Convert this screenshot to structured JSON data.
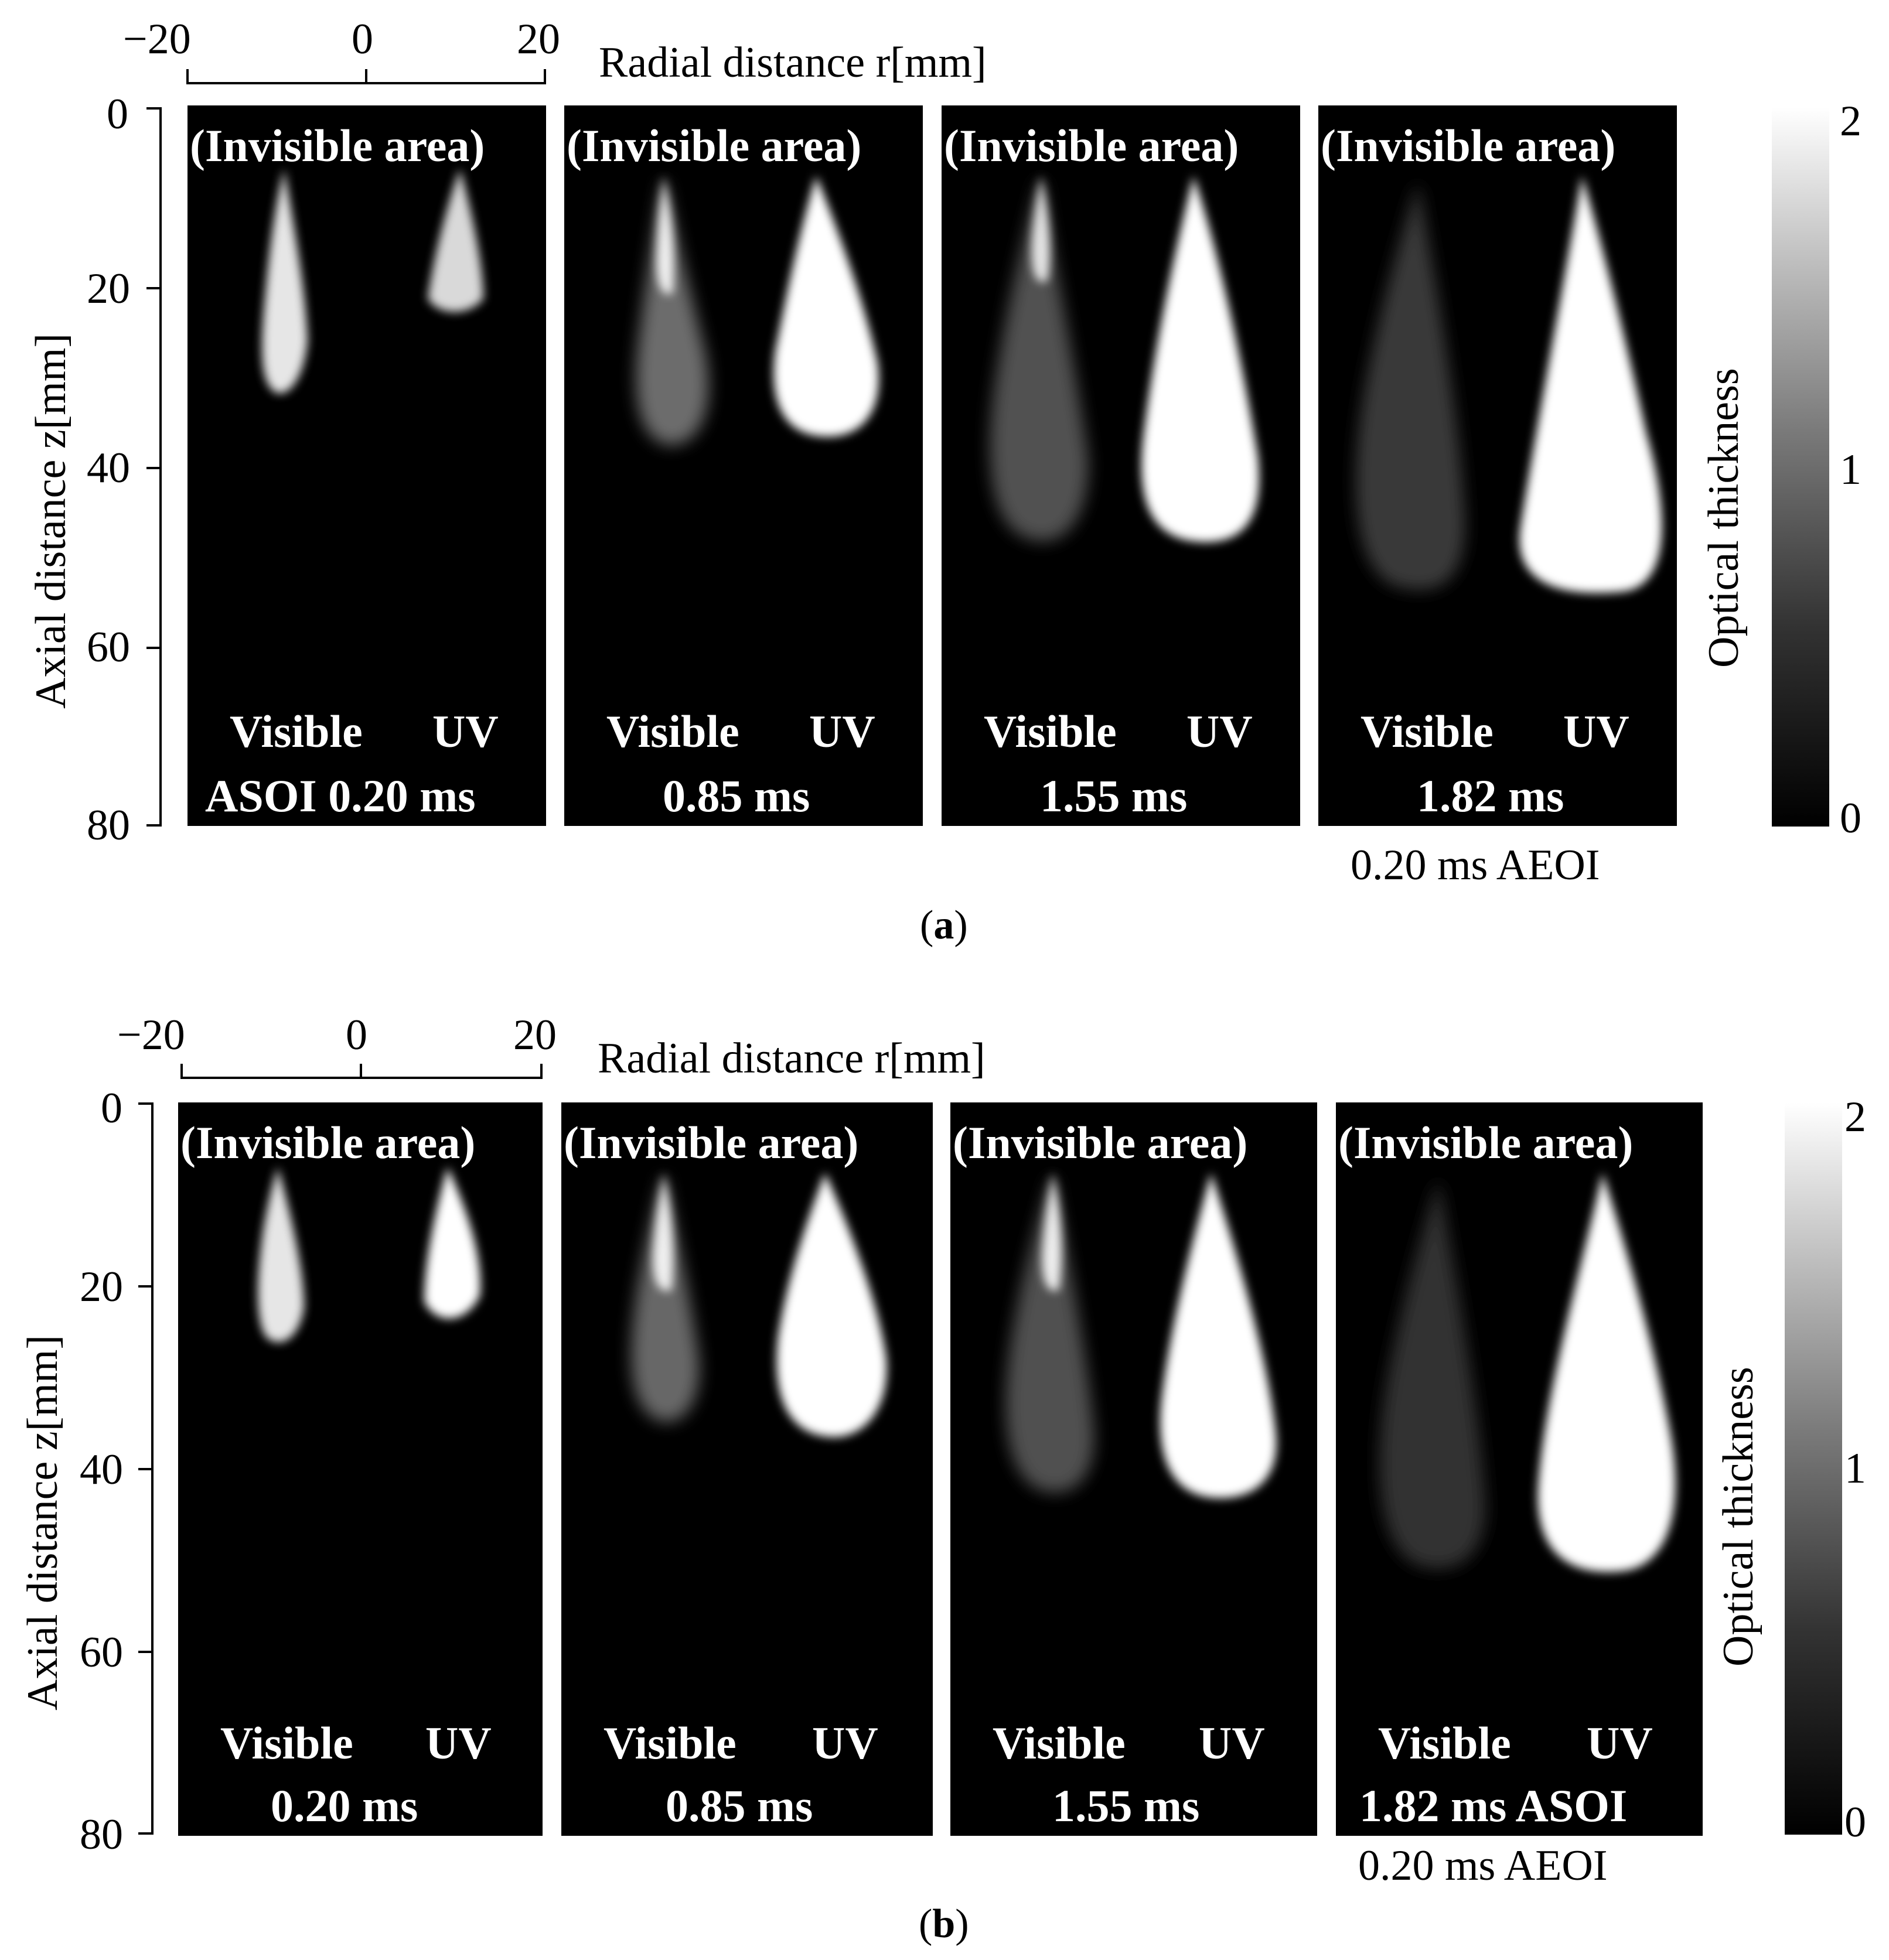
{
  "figure": {
    "x_axis_label": "Radial distance r[mm]",
    "y_axis_label": "Axial distance z[mm]",
    "colorbar_label": "Optical thickness",
    "x_ticks": [
      "−20",
      "0",
      "20"
    ],
    "y_ticks": [
      "0",
      "20",
      "40",
      "60",
      "80"
    ],
    "colorbar_ticks": [
      "2",
      "1",
      "0"
    ],
    "invisible_area_label": "(Invisible area)",
    "left_half_label": "Visible",
    "right_half_label": "UV"
  },
  "subfigure_a": {
    "caption_letter": "a",
    "panels": [
      {
        "time_label": "ASOI 0.20 ms"
      },
      {
        "time_label": "0.85 ms"
      },
      {
        "time_label": "1.55 ms"
      },
      {
        "time_label": "1.82 ms"
      }
    ],
    "below_note": "0.20 ms AEOI"
  },
  "subfigure_b": {
    "caption_letter": "b",
    "panels": [
      {
        "time_label": "0.20 ms"
      },
      {
        "time_label": "0.85 ms"
      },
      {
        "time_label": "1.55 ms"
      },
      {
        "time_label": "1.82 ms ASOI"
      }
    ],
    "below_note": "0.20 ms AEOI"
  },
  "colors": {
    "panel_background": "#000000",
    "spray": "#ffffff"
  }
}
